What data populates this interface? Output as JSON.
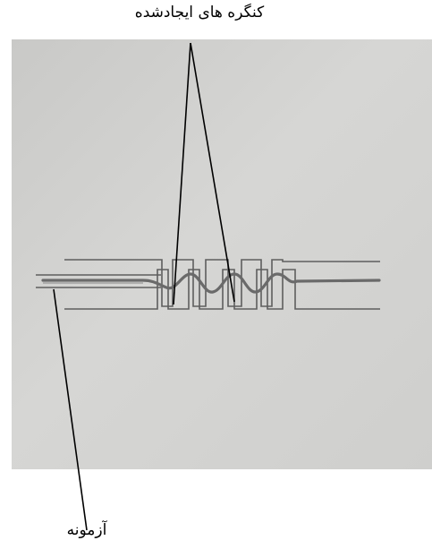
{
  "labels": {
    "notches": "کنگره های ایجادشده",
    "specimen": "آزمونه"
  },
  "colors": {
    "photo_background": "#d2d2d0",
    "pencil_line": "#5e5e5e",
    "specimen_wire": "#6a6a6a",
    "leader_line": "#000000"
  }
}
